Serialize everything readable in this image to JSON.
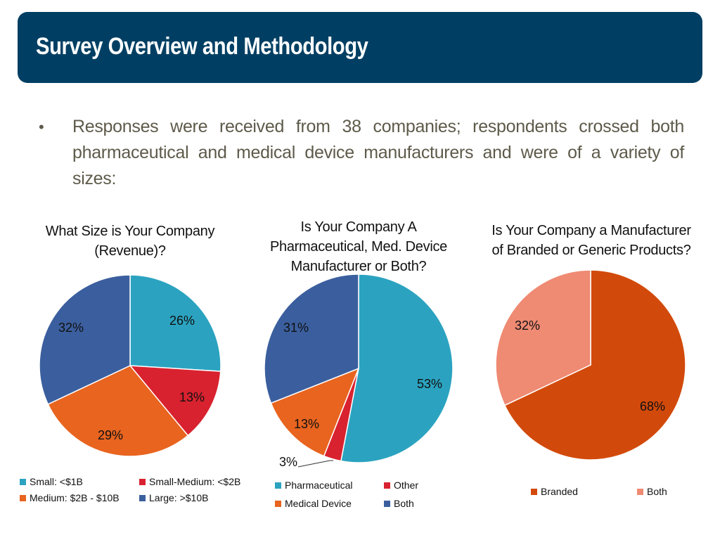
{
  "banner": {
    "title": "Survey Overview and Methodology"
  },
  "bullet": {
    "marker": "•",
    "text": "Responses were received from 38 companies; respondents crossed both pharmaceutical and medical device manufacturers and were of a variety of sizes:"
  },
  "colors": {
    "banner": "#003f63",
    "teal": "#2ba3c0",
    "red": "#d9222f",
    "orange": "#e8641f",
    "blue": "#3b5f9e",
    "branded": "#d24a0b",
    "both": "#ef8a73"
  },
  "chart_data": [
    {
      "type": "pie",
      "title": "What Size is Your Company (Revenue)?",
      "title_lines": [
        "What Size is Your Company",
        "(Revenue)?"
      ],
      "categories": [
        "Small: <$1B",
        "Small-Medium: <$2B",
        "Medium: $2B - $10B",
        "Large: >$10B"
      ],
      "values": [
        26,
        13,
        29,
        32
      ],
      "labels": [
        "26%",
        "13%",
        "29%",
        "32%"
      ],
      "colors": [
        "#2ba3c0",
        "#d9222f",
        "#e8641f",
        "#3b5f9e"
      ],
      "legend_position": "bottom"
    },
    {
      "type": "pie",
      "title": "Is Your Company A Pharmaceutical, Med. Device Manufacturer or Both?",
      "title_lines": [
        "Is Your Company A",
        "Pharmaceutical, Med. Device",
        "Manufacturer or Both?"
      ],
      "categories": [
        "Pharmaceutical",
        "Other",
        "Medical Device",
        "Both"
      ],
      "values": [
        53,
        3,
        13,
        31
      ],
      "labels": [
        "53%",
        "3%",
        "13%",
        "31%"
      ],
      "colors": [
        "#2ba3c0",
        "#d9222f",
        "#e8641f",
        "#3b5f9e"
      ],
      "legend_position": "bottom"
    },
    {
      "type": "pie",
      "title": "Is Your Company a Manufacturer of Branded or Generic Products?",
      "title_lines": [
        "Is Your Company a Manufacturer",
        "of Branded or Generic Products?"
      ],
      "categories": [
        "Branded",
        "Both"
      ],
      "values": [
        68,
        32
      ],
      "labels": [
        "68%",
        "32%"
      ],
      "colors": [
        "#d24a0b",
        "#ef8a73"
      ],
      "legend_position": "bottom"
    }
  ]
}
